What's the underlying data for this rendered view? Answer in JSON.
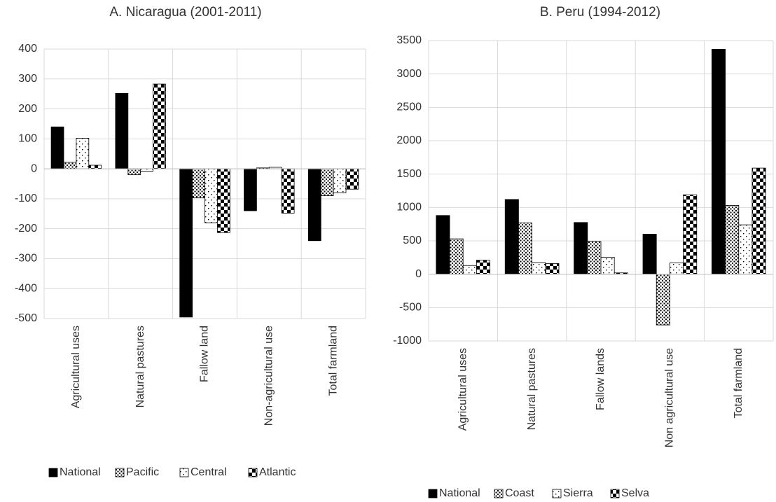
{
  "chart_data": [
    {
      "type": "bar",
      "title": "A. Nicaragua (2001-2011)",
      "categories": [
        "Agricultural uses",
        "Natural pastures",
        "Fallow land",
        "Non-agricultural use",
        "Total farmland"
      ],
      "series": [
        {
          "name": "National",
          "color": "#000000",
          "pattern": "solid",
          "values": [
            140,
            252,
            -495,
            -140,
            -240
          ]
        },
        {
          "name": "Pacific",
          "color": "#000000",
          "pattern": "dense-dots",
          "values": [
            22,
            -20,
            -97,
            3,
            -90
          ]
        },
        {
          "name": "Central",
          "color": "#000000",
          "pattern": "sparse-dots",
          "values": [
            102,
            -8,
            -180,
            5,
            -80
          ]
        },
        {
          "name": "Atlantic",
          "color": "#000000",
          "pattern": "checker",
          "values": [
            12,
            283,
            -213,
            -148,
            -68
          ]
        }
      ],
      "ylim": [
        -500,
        400
      ],
      "yticks": [
        -500,
        -400,
        -300,
        -200,
        -100,
        0,
        100,
        200,
        300,
        400
      ],
      "grid": true
    },
    {
      "type": "bar",
      "title": "B. Peru (1994-2012)",
      "categories": [
        "Agricultural uses",
        "Natural pastures",
        "Fallow lands",
        "Non agricultural use",
        "Total farmland"
      ],
      "series": [
        {
          "name": "National",
          "color": "#000000",
          "pattern": "solid",
          "values": [
            880,
            1120,
            775,
            600,
            3370
          ]
        },
        {
          "name": "Coast",
          "color": "#000000",
          "pattern": "dense-dots",
          "values": [
            530,
            770,
            490,
            -760,
            1030
          ]
        },
        {
          "name": "Sierra",
          "color": "#000000",
          "pattern": "sparse-dots",
          "values": [
            130,
            175,
            255,
            170,
            740
          ]
        },
        {
          "name": "Selva",
          "color": "#000000",
          "pattern": "checker",
          "values": [
            210,
            160,
            20,
            1190,
            1590
          ]
        }
      ],
      "ylim": [
        -1000,
        3500
      ],
      "yticks": [
        -1000,
        -500,
        0,
        500,
        1000,
        1500,
        2000,
        2500,
        3000,
        3500
      ],
      "grid": true
    }
  ]
}
